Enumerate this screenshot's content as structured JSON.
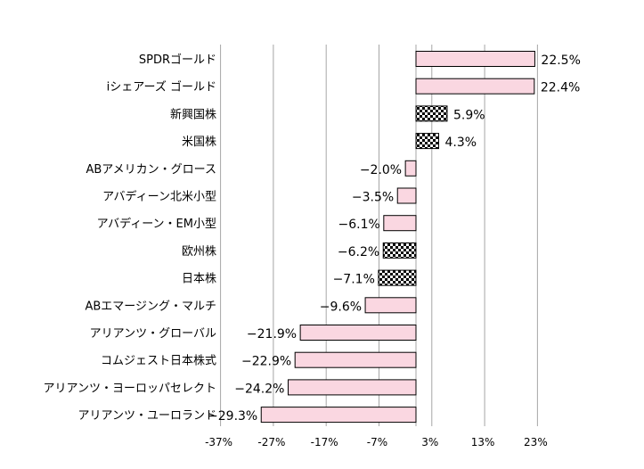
{
  "chart_data": {
    "type": "bar",
    "orientation": "horizontal",
    "categories": [
      "SPDRゴールド",
      "iシェアーズ ゴールド",
      "新興国株",
      "米国株",
      "ABアメリカン・グロース",
      "アバディーン北米小型",
      "アバディーン・EM小型",
      "欧州株",
      "日本株",
      "ABエマージング・マルチ",
      "アリアンツ・グローバル",
      "コムジェスト日本株式",
      "アリアンツ・ヨーロッパセレクト",
      "アリアンツ・ユーロランド"
    ],
    "values": [
      22.5,
      22.4,
      5.9,
      4.3,
      -2.0,
      -3.5,
      -6.1,
      -6.2,
      -7.1,
      -9.6,
      -21.9,
      -22.9,
      -24.2,
      -29.3
    ],
    "value_labels": [
      "22.5%",
      "22.4%",
      "5.9%",
      "4.3%",
      "−2.0%",
      "−3.5%",
      "−6.1%",
      "−6.2%",
      "−7.1%",
      "−9.6%",
      "−21.9%",
      "−22.9%",
      "−24.2%",
      "−29.3%"
    ],
    "fills": [
      "pink",
      "pink",
      "check",
      "check",
      "pink",
      "pink",
      "pink",
      "check",
      "check",
      "pink",
      "pink",
      "pink",
      "pink",
      "pink"
    ],
    "xticks": [
      -37,
      -27,
      -17,
      -7,
      3,
      13,
      23
    ],
    "xtick_labels": [
      "-37%",
      "-27%",
      "-17%",
      "-7%",
      "3%",
      "13%",
      "23%"
    ],
    "xlim": [
      -37,
      29
    ],
    "grid": "vertical",
    "title": "",
    "xlabel": "",
    "ylabel": "",
    "colors": {
      "bar_fill": "#fad7e1",
      "bar_stroke": "#000000",
      "grid": "#a6a6a6",
      "check_dark": "#000000",
      "check_light": "#ffffff"
    }
  }
}
